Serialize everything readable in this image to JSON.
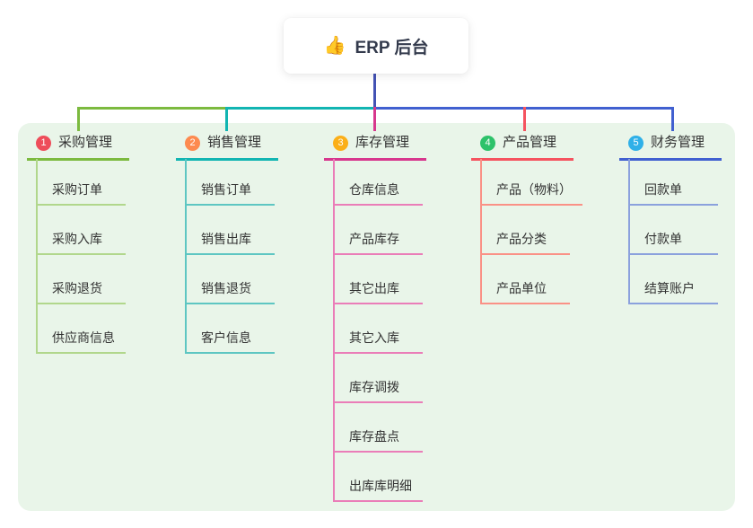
{
  "root": {
    "icon": "👍",
    "title": "ERP 后台"
  },
  "colors": {
    "canvas_bg": "#ffffff",
    "panel_bg": "#e9f5e9",
    "root_stem": "#4352b4",
    "title_text": "#333333",
    "child_text": "#333333",
    "root_text": "#333a4c"
  },
  "branches": [
    {
      "badge": "1",
      "badge_color": "#ee4d5a",
      "line_color": "#7cba3f",
      "child_line_color": "#b1d78c",
      "label": "采购管理",
      "children": [
        "采购订单",
        "采购入库",
        "采购退货",
        "供应商信息"
      ]
    },
    {
      "badge": "2",
      "badge_color": "#fd8a4f",
      "line_color": "#12b5b2",
      "child_line_color": "#5ec6c2",
      "label": "销售管理",
      "children": [
        "销售订单",
        "销售出库",
        "销售退货",
        "客户信息"
      ]
    },
    {
      "badge": "3",
      "badge_color": "#fbaf18",
      "line_color": "#d7378d",
      "child_line_color": "#ea7db8",
      "label": "库存管理",
      "children": [
        "仓库信息",
        "产品库存",
        "其它出库",
        "其它入库",
        "库存调拨",
        "库存盘点",
        "出库库明细"
      ]
    },
    {
      "badge": "4",
      "badge_color": "#2dc26a",
      "line_color": "#f5535f",
      "child_line_color": "#fa9186",
      "label": "产品管理",
      "children": [
        "产品（物料）",
        "产品分类",
        "产品单位"
      ]
    },
    {
      "badge": "5",
      "badge_color": "#2fb0e8",
      "line_color": "#4160d0",
      "child_line_color": "#8ba1dd",
      "label": "财务管理",
      "children": [
        "回款单",
        "付款单",
        "结算账户"
      ]
    }
  ]
}
